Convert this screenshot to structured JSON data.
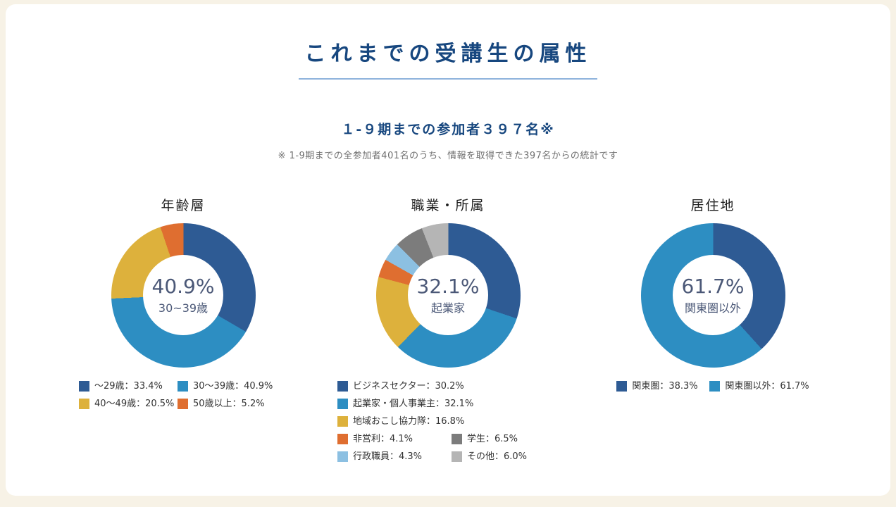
{
  "page": {
    "title": "これまでの受講生の属性",
    "subtitle": "１-９期までの参加者３９７名※",
    "note": "※ 1-9期までの全参加者401名のうち、情報を取得できた397名からの統計です"
  },
  "colors": {
    "title_navy": "#17477f",
    "underline_blue": "#8fb3dc",
    "center_text": "#4b5877",
    "note_gray": "#6f6f6f",
    "legend_text": "#333333",
    "page_cream": "#f7f2e6"
  },
  "chart_data": [
    {
      "type": "pie",
      "title": "年齢層",
      "center_percent": "40.9%",
      "center_label": "30~39歳",
      "legend_position": "bottom",
      "segments": [
        {
          "label": "〜29歳",
          "value": 33.4,
          "color": "#2e5b94",
          "legend": "〜29歳：33.4%"
        },
        {
          "label": "30〜39歳",
          "value": 40.9,
          "color": "#2d8ec2",
          "legend": "30〜39歳：40.9%"
        },
        {
          "label": "40〜49歳",
          "value": 20.5,
          "color": "#ddb13c",
          "legend": "40〜49歳：20.5%"
        },
        {
          "label": "50歳以上",
          "value": 5.2,
          "color": "#df6e30",
          "legend": "50歳以上：5.2%"
        }
      ],
      "legend_rows": [
        [
          0,
          1
        ],
        [
          2,
          3
        ]
      ]
    },
    {
      "type": "pie",
      "title": "職業・所属",
      "center_percent": "32.1%",
      "center_label": "起業家",
      "legend_position": "bottom",
      "segments": [
        {
          "label": "ビジネスセクター",
          "value": 30.2,
          "color": "#2e5b94",
          "legend": "ビジネスセクター：30.2%"
        },
        {
          "label": "起業家・個人事業主",
          "value": 32.1,
          "color": "#2d8ec2",
          "legend": "起業家・個人事業主：32.1%"
        },
        {
          "label": "地域おこし協力隊",
          "value": 16.8,
          "color": "#ddb13c",
          "legend": "地域おこし協力隊：16.8%"
        },
        {
          "label": "非営利",
          "value": 4.1,
          "color": "#df6e30",
          "legend": "非営利：4.1%"
        },
        {
          "label": "行政職員",
          "value": 4.3,
          "color": "#8cc0e2",
          "legend": "行政職員：4.3%"
        },
        {
          "label": "学生",
          "value": 6.5,
          "color": "#7c7c7c",
          "legend": "学生：6.5%"
        },
        {
          "label": "その他",
          "value": 6.0,
          "color": "#b5b5b5",
          "legend": "その他：6.0%"
        }
      ],
      "legend_rows": [
        [
          0
        ],
        [
          1
        ],
        [
          2
        ],
        [
          3,
          5
        ],
        [
          4,
          6
        ]
      ]
    },
    {
      "type": "pie",
      "title": "居住地",
      "center_percent": "61.7%",
      "center_label": "関東圏以外",
      "legend_position": "bottom",
      "segments": [
        {
          "label": "関東圏",
          "value": 38.3,
          "color": "#2e5b94",
          "legend": "関東圏：38.3%"
        },
        {
          "label": "関東圏以外",
          "value": 61.7,
          "color": "#2d8ec2",
          "legend": "関東圏以外：61.7%"
        }
      ],
      "legend_rows": [
        [
          0,
          1
        ]
      ]
    }
  ]
}
